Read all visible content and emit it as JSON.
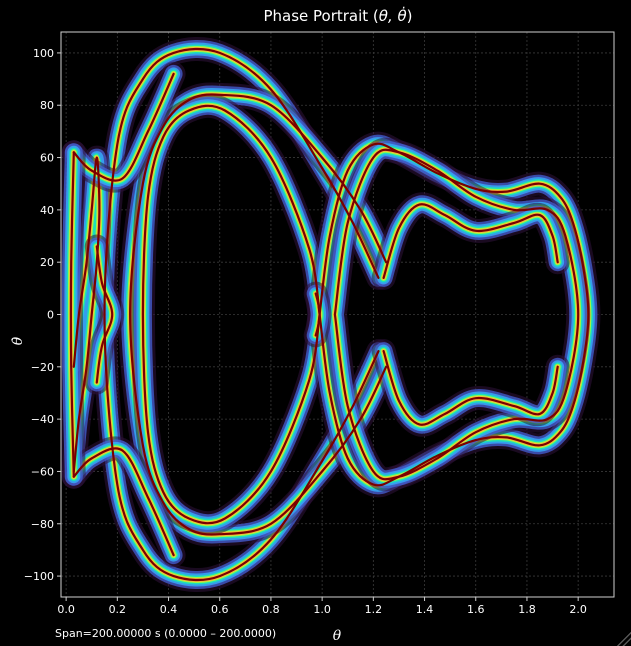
{
  "chart_data": {
    "type": "line",
    "title_main": "Phase Portrait (",
    "title_math": "θ, θ̇",
    "title_end": ")",
    "xlabel": "θ",
    "ylabel": "θ̇",
    "xlim": [
      -0.02,
      2.14
    ],
    "ylim": [
      -108,
      108
    ],
    "xticks": [
      "0.0",
      "0.2",
      "0.4",
      "0.6",
      "0.8",
      "1.0",
      "1.2",
      "1.4",
      "1.6",
      "1.8",
      "2.0"
    ],
    "yticks": [
      "100",
      "80",
      "60",
      "40",
      "20",
      "0",
      "−20",
      "−40",
      "−60",
      "−80",
      "−100"
    ],
    "grid": true,
    "colormap": "turbo",
    "line_color": "#7a0000",
    "span_text": "Span=200.00000 s (0.0000 – 200.0000)",
    "series": [
      {
        "x": [
          1.22,
          1.12,
          1.0,
          0.8,
          0.6,
          0.42,
          0.3,
          0.2,
          0.15,
          0.2,
          0.3,
          0.42,
          0.6,
          0.8,
          1.0,
          1.12,
          1.22
        ],
        "y": [
          14,
          35,
          56,
          86,
          100,
          100,
          90,
          65,
          0,
          -65,
          -90,
          -100,
          -100,
          -86,
          -56,
          -35,
          -14
        ]
      },
      {
        "x": [
          1.25,
          1.15,
          1.0,
          0.8,
          0.6,
          0.48,
          0.38,
          0.3,
          0.25,
          0.3,
          0.38,
          0.48,
          0.6,
          0.8,
          1.0,
          1.15,
          1.25
        ],
        "y": [
          20,
          40,
          60,
          80,
          84,
          82,
          72,
          50,
          0,
          -50,
          -72,
          -82,
          -84,
          -80,
          -60,
          -40,
          -20
        ]
      },
      {
        "x": [
          0.99,
          0.95,
          0.8,
          0.62,
          0.48,
          0.38,
          0.32,
          0.3,
          0.32,
          0.38,
          0.48,
          0.62,
          0.8,
          0.95,
          0.99
        ],
        "y": [
          0,
          25,
          60,
          78,
          78,
          68,
          45,
          0,
          -45,
          -68,
          -78,
          -78,
          -60,
          -25,
          0
        ],
        "closed": true
      },
      {
        "x": [
          0.99,
          1.03,
          1.1,
          1.2,
          1.3,
          1.45,
          1.6,
          1.72,
          1.85,
          1.93,
          1.98,
          2.02,
          2.04,
          2.02,
          1.98,
          1.93,
          1.85,
          1.72,
          1.6,
          1.45,
          1.3,
          1.2,
          1.1,
          1.03,
          0.99
        ],
        "y": [
          0,
          30,
          55,
          65,
          62,
          54,
          48,
          47,
          50,
          45,
          35,
          18,
          0,
          -18,
          -35,
          -45,
          -50,
          -47,
          -48,
          -54,
          -62,
          -65,
          -55,
          -30,
          0
        ]
      },
      {
        "x": [
          1.05,
          1.1,
          1.2,
          1.3,
          1.45,
          1.6,
          1.75,
          1.88,
          1.95,
          2.0,
          1.95,
          1.88,
          1.75,
          1.6,
          1.45,
          1.3,
          1.2,
          1.1,
          1.05
        ],
        "y": [
          0,
          35,
          60,
          62,
          55,
          45,
          40,
          40,
          30,
          0,
          -30,
          -40,
          -40,
          -45,
          -55,
          -62,
          -60,
          -35,
          0
        ]
      },
      {
        "x": [
          1.24,
          1.3,
          1.38,
          1.48,
          1.6,
          1.75,
          1.85,
          1.9,
          1.92
        ],
        "y": [
          14,
          33,
          42,
          38,
          32,
          35,
          38,
          30,
          20
        ]
      },
      {
        "x": [
          1.24,
          1.3,
          1.38,
          1.48,
          1.6,
          1.75,
          1.85,
          1.9,
          1.92
        ],
        "y": [
          -14,
          -33,
          -42,
          -38,
          -32,
          -35,
          -38,
          -30,
          -20
        ]
      },
      {
        "x": [
          0.03,
          0.05,
          0.08,
          0.1,
          0.12,
          0.13,
          0.12,
          0.1,
          0.08,
          0.05,
          0.03
        ],
        "y": [
          -60,
          -40,
          -20,
          0,
          20,
          40,
          60,
          40,
          20,
          0,
          -20
        ]
      },
      {
        "x": [
          0.12,
          0.14,
          0.18,
          0.14,
          0.12,
          0.14,
          0.18,
          0.14,
          0.12
        ],
        "y": [
          26,
          12,
          0,
          -12,
          -26,
          -12,
          0,
          12,
          26
        ]
      },
      {
        "x": [
          0.03,
          0.1,
          0.22,
          0.32,
          0.42
        ],
        "y": [
          62,
          55,
          52,
          70,
          92
        ]
      },
      {
        "x": [
          0.03,
          0.1,
          0.22,
          0.32,
          0.42
        ],
        "y": [
          -62,
          -55,
          -52,
          -70,
          -92
        ]
      },
      {
        "x": [
          0.975,
          0.985,
          0.99,
          0.985,
          0.975,
          0.985,
          0.99,
          0.985,
          0.975
        ],
        "y": [
          -8,
          -4,
          0,
          4,
          8,
          4,
          0,
          -4,
          -8
        ]
      },
      {
        "x": [
          0.03,
          0.02,
          0.02,
          0.03
        ],
        "y": [
          62,
          20,
          -20,
          -62
        ]
      }
    ]
  }
}
